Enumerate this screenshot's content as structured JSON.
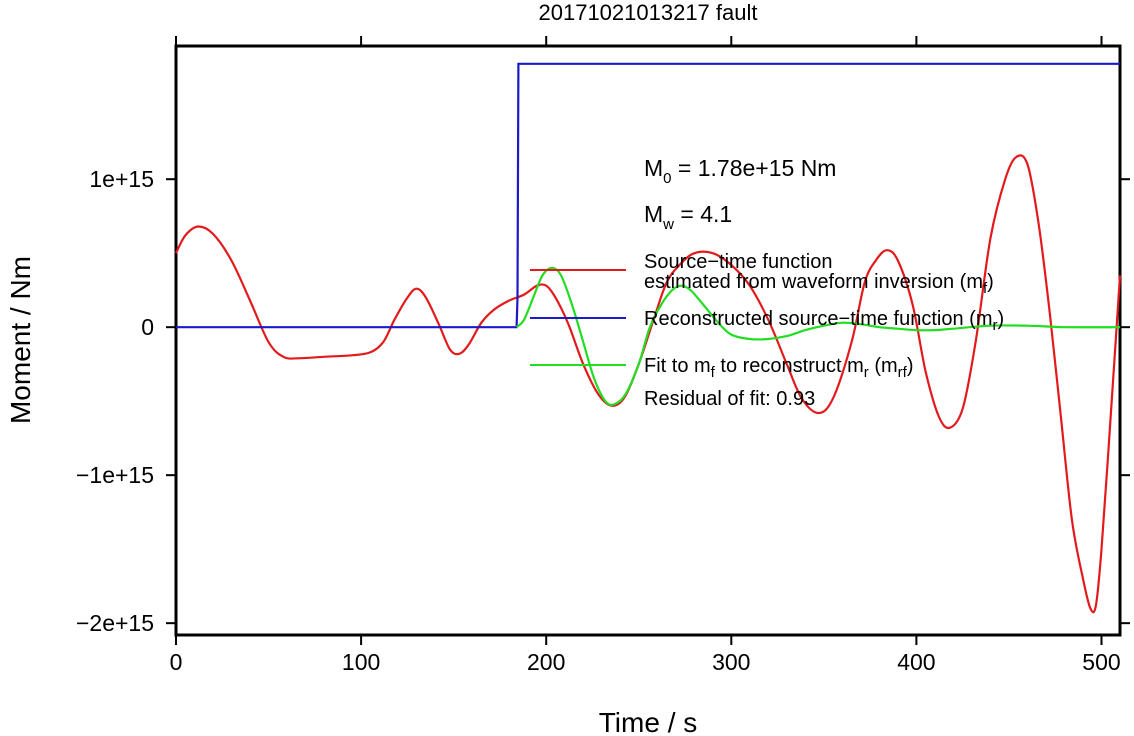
{
  "chart_data": {
    "type": "line",
    "title": "20171021013217 fault",
    "xlabel": "Time / s",
    "ylabel": "Moment / Nm",
    "xlim": [
      0,
      510
    ],
    "ylim": [
      -2080000000000000.0,
      1900000000000000.0
    ],
    "x_ticks": [
      {
        "value": 0,
        "label": "0"
      },
      {
        "value": 100,
        "label": "100"
      },
      {
        "value": 200,
        "label": "200"
      },
      {
        "value": 300,
        "label": "300"
      },
      {
        "value": 400,
        "label": "400"
      },
      {
        "value": 500,
        "label": "500"
      }
    ],
    "y_ticks": [
      {
        "value": 1000000000000000.0,
        "label": "1e+15"
      },
      {
        "value": 0,
        "label": "0"
      },
      {
        "value": -1000000000000000.0,
        "label": "−1e+15"
      },
      {
        "value": -2000000000000000.0,
        "label": "−2e+15"
      }
    ],
    "grid": false,
    "legend_position": "center-right",
    "annotations": {
      "m0": {
        "prefix": "M",
        "sub": "0",
        "rest": " = 1.78e+15 Nm"
      },
      "mw": {
        "prefix": "M",
        "sub": "w",
        "rest": " = 4.1"
      },
      "residual": "Residual of fit: 0.93"
    },
    "legend": [
      {
        "color": "#e31a1c",
        "line1": "Source−time function",
        "line2": "estimated from waveform inversion (m",
        "line2_sub": "f",
        "line2_end": ")"
      },
      {
        "color": "#1a1ac8",
        "line1": "Reconstructed source−time function (m",
        "line1_sub": "r",
        "line1_end": ")"
      },
      {
        "color": "#22dd22",
        "line1": "Fit to m",
        "line1_sub": "f",
        "line1_mid": " to reconstruct m",
        "line1_sub2": "r",
        "line1_mid2": " (m",
        "line1_sub3": "rf",
        "line1_end": ")"
      }
    ],
    "series": [
      {
        "color": "#e31a1c",
        "points": [
          [
            0,
            500000000000000.0
          ],
          [
            5,
            620000000000000.0
          ],
          [
            12,
            680000000000000.0
          ],
          [
            20,
            630000000000000.0
          ],
          [
            30,
            450000000000000.0
          ],
          [
            40,
            180000000000000.0
          ],
          [
            50,
            -100000000000000.0
          ],
          [
            58,
            -200000000000000.0
          ],
          [
            66,
            -210000000000000.0
          ],
          [
            80,
            -200000000000000.0
          ],
          [
            95,
            -190000000000000.0
          ],
          [
            105,
            -170000000000000.0
          ],
          [
            112,
            -100000000000000.0
          ],
          [
            118,
            50000000000000.0
          ],
          [
            125,
            200000000000000.0
          ],
          [
            130,
            260000000000000.0
          ],
          [
            135,
            200000000000000.0
          ],
          [
            142,
            20000000000000.0
          ],
          [
            148,
            -150000000000000.0
          ],
          [
            153,
            -180000000000000.0
          ],
          [
            158,
            -120000000000000.0
          ],
          [
            165,
            30000000000000.0
          ],
          [
            172,
            120000000000000.0
          ],
          [
            180,
            180000000000000.0
          ],
          [
            188,
            220000000000000.0
          ],
          [
            195,
            280000000000000.0
          ],
          [
            200,
            280000000000000.0
          ],
          [
            205,
            200000000000000.0
          ],
          [
            212,
            20000000000000.0
          ],
          [
            220,
            -250000000000000.0
          ],
          [
            228,
            -450000000000000.0
          ],
          [
            235,
            -530000000000000.0
          ],
          [
            242,
            -480000000000000.0
          ],
          [
            250,
            -250000000000000.0
          ],
          [
            258,
            50000000000000.0
          ],
          [
            265,
            300000000000000.0
          ],
          [
            272,
            420000000000000.0
          ],
          [
            280,
            500000000000000.0
          ],
          [
            290,
            500000000000000.0
          ],
          [
            300,
            420000000000000.0
          ],
          [
            310,
            280000000000000.0
          ],
          [
            320,
            50000000000000.0
          ],
          [
            330,
            -250000000000000.0
          ],
          [
            338,
            -480000000000000.0
          ],
          [
            347,
            -580000000000000.0
          ],
          [
            355,
            -480000000000000.0
          ],
          [
            365,
            -100000000000000.0
          ],
          [
            372,
            300000000000000.0
          ],
          [
            378,
            450000000000000.0
          ],
          [
            384,
            520000000000000.0
          ],
          [
            390,
            450000000000000.0
          ],
          [
            398,
            150000000000000.0
          ],
          [
            405,
            -300000000000000.0
          ],
          [
            412,
            -600000000000000.0
          ],
          [
            418,
            -680000000000000.0
          ],
          [
            425,
            -550000000000000.0
          ],
          [
            432,
            -100000000000000.0
          ],
          [
            440,
            600000000000000.0
          ],
          [
            448,
            1000000000000000.0
          ],
          [
            454,
            1150000000000000.0
          ],
          [
            460,
            1100000000000000.0
          ],
          [
            466,
            700000000000000.0
          ],
          [
            472,
            100000000000000.0
          ],
          [
            478,
            -600000000000000.0
          ],
          [
            484,
            -1300000000000000.0
          ],
          [
            490,
            -1700000000000000.0
          ],
          [
            494,
            -1900000000000000.0
          ],
          [
            497,
            -1880000000000000.0
          ],
          [
            500,
            -1500000000000000.0
          ],
          [
            505,
            -600000000000000.0
          ],
          [
            510,
            350000000000000.0
          ]
        ]
      },
      {
        "color": "#1a1ac8",
        "points": [
          [
            0,
            0
          ],
          [
            184,
            0
          ],
          [
            184.5,
            200000000000000.0
          ],
          [
            185,
            1780000000000000.0
          ],
          [
            510,
            1780000000000000.0
          ]
        ]
      },
      {
        "color": "#22dd22",
        "points": [
          [
            184,
            0
          ],
          [
            188,
            50000000000000.0
          ],
          [
            193,
            200000000000000.0
          ],
          [
            198,
            350000000000000.0
          ],
          [
            203,
            400000000000000.0
          ],
          [
            208,
            350000000000000.0
          ],
          [
            214,
            150000000000000.0
          ],
          [
            220,
            -100000000000000.0
          ],
          [
            226,
            -350000000000000.0
          ],
          [
            232,
            -500000000000000.0
          ],
          [
            237,
            -520000000000000.0
          ],
          [
            243,
            -450000000000000.0
          ],
          [
            250,
            -250000000000000.0
          ],
          [
            256,
            0.0
          ],
          [
            262,
            150000000000000.0
          ],
          [
            268,
            250000000000000.0
          ],
          [
            273,
            280000000000000.0
          ],
          [
            278,
            250000000000000.0
          ],
          [
            285,
            150000000000000.0
          ],
          [
            293,
            30000000000000.0
          ],
          [
            300,
            -50000000000000.0
          ],
          [
            310,
            -80000000000000.0
          ],
          [
            320,
            -80000000000000.0
          ],
          [
            330,
            -60000000000000.0
          ],
          [
            340,
            -20000000000000.0
          ],
          [
            350,
            10000000000000.0
          ],
          [
            360,
            30000000000000.0
          ],
          [
            370,
            20000000000000.0
          ],
          [
            380,
            0.0
          ],
          [
            390,
            -10000000000000.0
          ],
          [
            400,
            -20000000000000.0
          ],
          [
            410,
            -20000000000000.0
          ],
          [
            420,
            -10000000000000.0
          ],
          [
            440,
            10000000000000.0
          ],
          [
            460,
            10000000000000.0
          ],
          [
            480,
            0.0
          ],
          [
            510,
            0.0
          ]
        ]
      }
    ]
  }
}
